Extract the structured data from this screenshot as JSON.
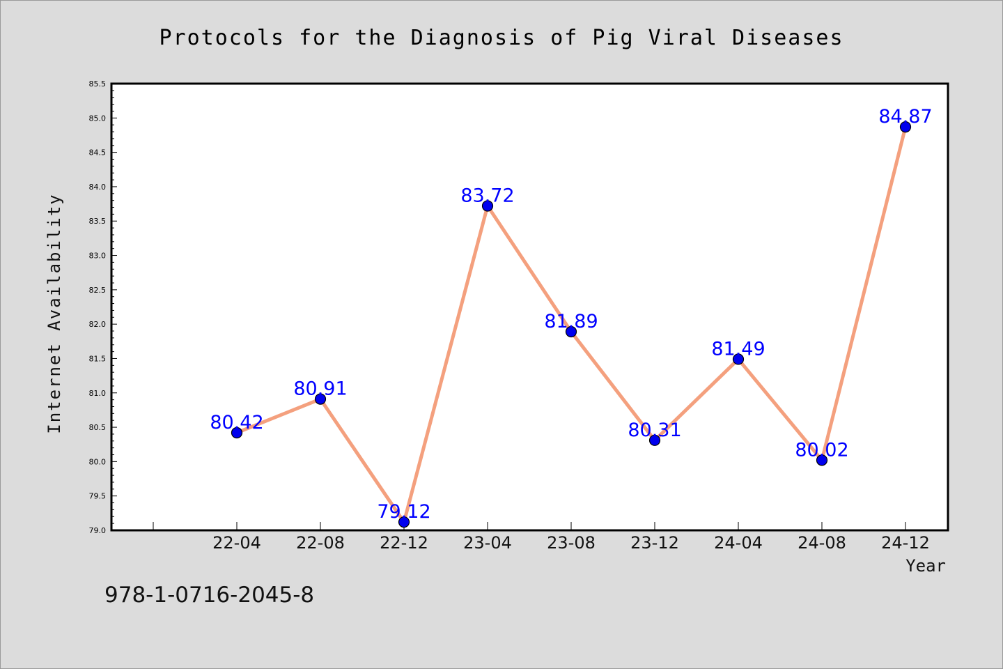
{
  "chart_data": {
    "type": "line",
    "title": "Protocols for the Diagnosis of Pig Viral Diseases",
    "xlabel": "Year",
    "ylabel": "Internet Availability",
    "categories": [
      "22-04",
      "22-08",
      "22-12",
      "23-04",
      "23-08",
      "23-12",
      "24-04",
      "24-08",
      "24-12"
    ],
    "series": [
      {
        "values": [
          80.42,
          80.91,
          79.12,
          83.72,
          81.89,
          80.31,
          81.49,
          80.02,
          84.87
        ],
        "line_color": "#f4a07e",
        "marker_color": "#0000ee"
      }
    ],
    "data_labels": [
      "80.42",
      "80.91",
      "79.12",
      "83.72",
      "81.89",
      "80.31",
      "81.49",
      "80.02",
      "84.87"
    ],
    "ylim": [
      79.0,
      85.5
    ],
    "yticks": [
      "79.0",
      "79.5",
      "80.0",
      "80.5",
      "81.0",
      "81.5",
      "82.0",
      "82.5",
      "83.0",
      "83.5",
      "84.0",
      "84.5",
      "85.0",
      "85.5"
    ],
    "grid": false,
    "legend": "none",
    "label_color": "#0000ff",
    "plot_background": "#ffffff",
    "figure_background": "#dcdcdc"
  },
  "footnote": "978-1-0716-2045-8"
}
